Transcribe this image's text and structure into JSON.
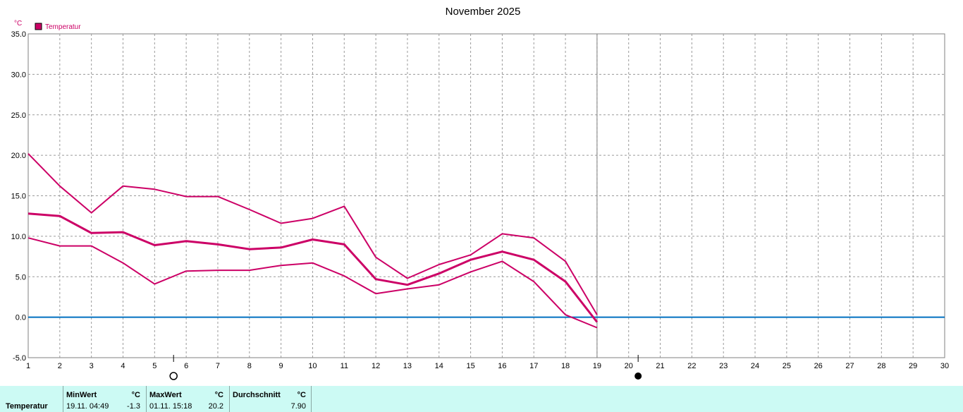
{
  "chart_data": {
    "type": "line",
    "title": "November 2025",
    "y_unit": "°C",
    "legend": [
      {
        "label": "Temperatur",
        "color": "#cc0066"
      }
    ],
    "x": [
      1,
      2,
      3,
      4,
      5,
      6,
      7,
      8,
      9,
      10,
      11,
      12,
      13,
      14,
      15,
      16,
      17,
      18,
      19,
      20,
      21,
      22,
      23,
      24,
      25,
      26,
      27,
      28,
      29,
      30
    ],
    "x_ticks": [
      "1",
      "2",
      "3",
      "4",
      "5",
      "6",
      "7",
      "8",
      "9",
      "10",
      "11",
      "12",
      "13",
      "14",
      "15",
      "16",
      "17",
      "18",
      "19",
      "20",
      "21",
      "22",
      "23",
      "24",
      "25",
      "26",
      "27",
      "28",
      "29",
      "30"
    ],
    "ylim": [
      -5.0,
      35.0
    ],
    "y_ticks": [
      "35.0",
      "30.0",
      "25.0",
      "20.0",
      "15.0",
      "10.0",
      "5.0",
      "0.0",
      "-5.0"
    ],
    "grid": true,
    "zero_line_color": "#0070c0",
    "current_day": 19,
    "series": [
      {
        "role": "max",
        "x": [
          1,
          2,
          3,
          4,
          5,
          6,
          7,
          8,
          9,
          10,
          11,
          12,
          13,
          14,
          15,
          16,
          17,
          18,
          19
        ],
        "values": [
          20.2,
          16.2,
          12.9,
          16.2,
          15.8,
          14.9,
          14.9,
          13.3,
          11.6,
          12.2,
          13.7,
          7.4,
          4.8,
          6.5,
          7.7,
          10.3,
          9.8,
          6.9,
          0.3
        ]
      },
      {
        "role": "avg",
        "x": [
          1,
          2,
          3,
          4,
          5,
          6,
          7,
          8,
          9,
          10,
          11,
          12,
          13,
          14,
          15,
          16,
          17,
          18,
          19
        ],
        "values": [
          12.8,
          12.5,
          10.4,
          10.5,
          8.9,
          9.4,
          9.0,
          8.4,
          8.6,
          9.6,
          9.0,
          4.7,
          4.0,
          5.4,
          7.1,
          8.1,
          7.1,
          4.4,
          -0.6
        ]
      },
      {
        "role": "min",
        "x": [
          1,
          2,
          3,
          4,
          5,
          6,
          7,
          8,
          9,
          10,
          11,
          12,
          13,
          14,
          15,
          16,
          17,
          18,
          19
        ],
        "values": [
          9.8,
          8.8,
          8.8,
          6.7,
          4.1,
          5.7,
          5.8,
          5.8,
          6.4,
          6.7,
          5.1,
          2.9,
          3.5,
          4.0,
          5.6,
          6.9,
          4.4,
          0.3,
          -1.3
        ]
      }
    ],
    "moon_phases": [
      {
        "phase": "full-moon",
        "day": 5.6
      },
      {
        "phase": "new-moon",
        "day": 20.3
      }
    ]
  },
  "stats": {
    "row_label": "Temperatur",
    "min": {
      "header": "MinWert",
      "unit": "°C",
      "datetime": "19.11.  04:49",
      "value": "-1.3"
    },
    "max": {
      "header": "MaxWert",
      "unit": "°C",
      "datetime": "01.11.  15:18",
      "value": "20.2"
    },
    "avg": {
      "header": "Durchschnitt",
      "unit": "°C",
      "value": "7.90"
    }
  }
}
